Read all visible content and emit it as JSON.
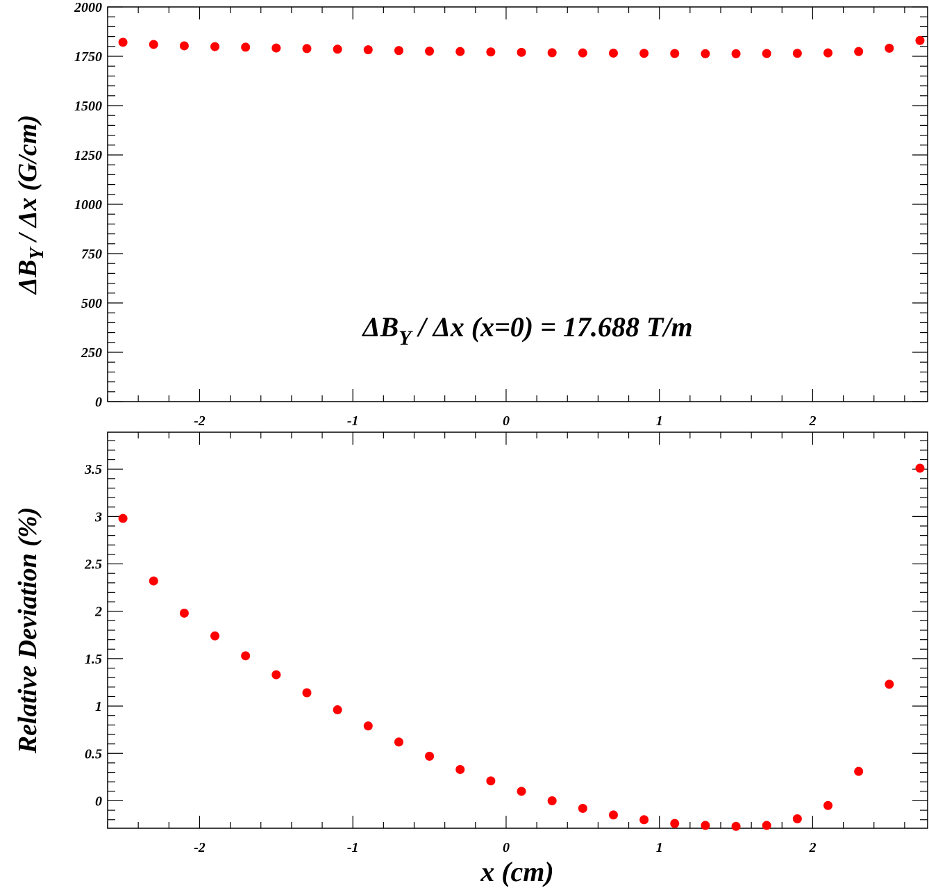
{
  "chart_data": [
    {
      "type": "scatter",
      "ylabel_main": "ΔB",
      "ylabel_sub": "Y",
      "ylabel_tail": " / Δx (G/cm)",
      "annotation_main": "ΔB",
      "annotation_sub": "Y",
      "annotation_tail": " / Δx (x=0) = 17.688 T/m",
      "xlim": [
        -2.6,
        2.75
      ],
      "ylim": [
        0,
        2000
      ],
      "xticks": [
        "-2",
        "-1",
        "0",
        "1",
        "2"
      ],
      "yticks": [
        "0",
        "250",
        "500",
        "750",
        "1000",
        "1250",
        "1500",
        "1750",
        "2000"
      ],
      "color": "#ff0000",
      "x": [
        -2.5,
        -2.3,
        -2.1,
        -1.9,
        -1.7,
        -1.5,
        -1.3,
        -1.1,
        -0.9,
        -0.7,
        -0.5,
        -0.3,
        -0.1,
        0.1,
        0.3,
        0.5,
        0.7,
        0.9,
        1.1,
        1.3,
        1.5,
        1.7,
        1.9,
        2.1,
        2.3,
        2.5,
        2.7
      ],
      "y": [
        1821,
        1810,
        1803,
        1799,
        1796,
        1792,
        1789,
        1786,
        1783,
        1779,
        1776,
        1774,
        1772,
        1770,
        1768,
        1767,
        1766,
        1765,
        1764,
        1763,
        1763,
        1764,
        1765,
        1767,
        1774,
        1791,
        1830
      ]
    },
    {
      "type": "scatter",
      "ylabel": "Relative Deviation (%)",
      "xlabel": "x (cm)",
      "xlim": [
        -2.6,
        2.75
      ],
      "ylim": [
        -0.29,
        3.89
      ],
      "xticks": [
        "-2",
        "-1",
        "0",
        "1",
        "2"
      ],
      "yticks": [
        "0",
        "0.5",
        "1",
        "1.5",
        "2",
        "2.5",
        "3",
        "3.5"
      ],
      "color": "#ff0000",
      "x": [
        -2.5,
        -2.3,
        -2.1,
        -1.9,
        -1.7,
        -1.5,
        -1.3,
        -1.1,
        -0.9,
        -0.7,
        -0.5,
        -0.3,
        -0.1,
        0.1,
        0.3,
        0.5,
        0.7,
        0.9,
        1.1,
        1.3,
        1.5,
        1.7,
        1.9,
        2.1,
        2.3,
        2.5,
        2.7
      ],
      "y": [
        2.98,
        2.32,
        1.98,
        1.74,
        1.53,
        1.33,
        1.14,
        0.96,
        0.79,
        0.62,
        0.47,
        0.33,
        0.21,
        0.1,
        0.0,
        -0.08,
        -0.15,
        -0.2,
        -0.24,
        -0.26,
        -0.27,
        -0.26,
        -0.19,
        -0.05,
        0.31,
        1.23,
        3.51
      ]
    }
  ]
}
